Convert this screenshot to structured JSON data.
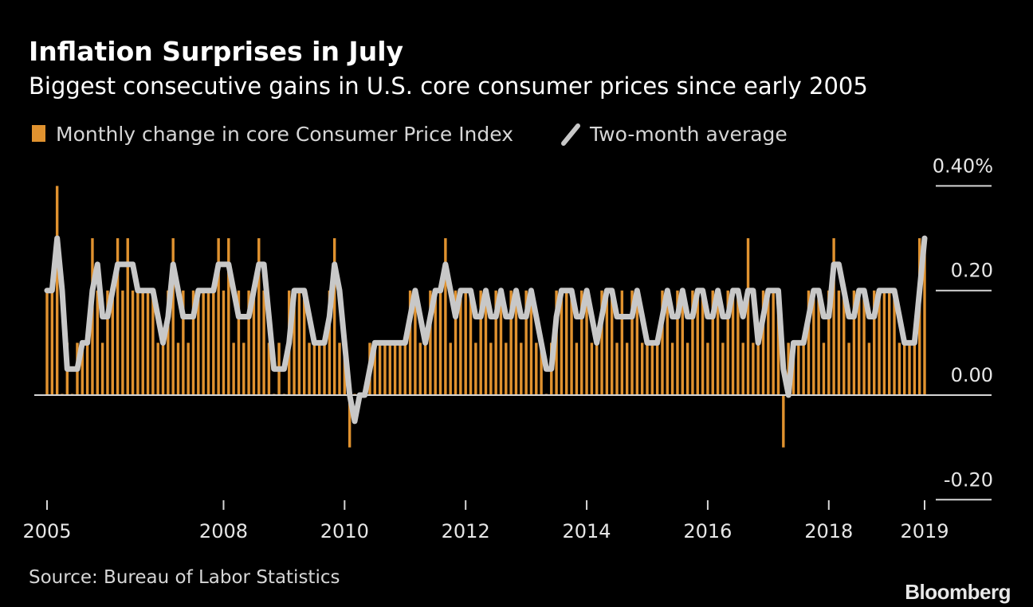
{
  "chart_data": {
    "type": "bar",
    "title": "Inflation Surprises in July",
    "subtitle": "Biggest consecutive gains in U.S. core consumer prices since early 2005",
    "xlabel": "",
    "ylabel": "",
    "x_start": "2005-01",
    "x_end": "2019-07",
    "x_tick_labels": [
      "2005",
      "2008",
      "2010",
      "2012",
      "2014",
      "2016",
      "2018",
      "2019"
    ],
    "y_tick_labels": [
      "0.40%",
      "0.20",
      "0.00",
      "-0.20"
    ],
    "y_ticks": [
      0.4,
      0.2,
      0.0,
      -0.2
    ],
    "ylim": [
      -0.2,
      0.4
    ],
    "grid": true,
    "legend_position": "top-left",
    "colors": {
      "bars": "#e0922f",
      "line": "#c8c8c8",
      "background": "#000000",
      "axis": "#d0d0d0"
    },
    "series": [
      {
        "name": "Monthly change in core Consumer Price Index",
        "type": "bar",
        "values": [
          0.2,
          0.2,
          0.4,
          0,
          0.1,
          0,
          0.1,
          0.1,
          0.1,
          0.3,
          0.2,
          0.1,
          0.2,
          0.2,
          0.3,
          0.2,
          0.3,
          0.2,
          0.2,
          0.2,
          0.2,
          0.2,
          0.1,
          0.1,
          0.2,
          0.3,
          0.1,
          0.2,
          0.1,
          0.2,
          0.2,
          0.2,
          0.2,
          0.2,
          0.3,
          0.2,
          0.3,
          0.1,
          0.2,
          0.1,
          0.2,
          0.2,
          0.3,
          0.2,
          0.1,
          0,
          0.1,
          0,
          0.2,
          0.2,
          0.2,
          0.2,
          0.1,
          0.1,
          0.1,
          0.1,
          0.2,
          0.3,
          0.1,
          0.1,
          -0.1,
          0,
          0,
          0,
          0.1,
          0.1,
          0.1,
          0.1,
          0.1,
          0.1,
          0.1,
          0.1,
          0.2,
          0.2,
          0.1,
          0.1,
          0.2,
          0.2,
          0.2,
          0.3,
          0.1,
          0.2,
          0.2,
          0.2,
          0.2,
          0.1,
          0.2,
          0.2,
          0.1,
          0.2,
          0.2,
          0.1,
          0.2,
          0.2,
          0.1,
          0.2,
          0.2,
          0.1,
          0.1,
          0,
          0.1,
          0.2,
          0.2,
          0.2,
          0.2,
          0.1,
          0.2,
          0.2,
          0.1,
          0.1,
          0.2,
          0.2,
          0.2,
          0.1,
          0.2,
          0.1,
          0.2,
          0.2,
          0.1,
          0.1,
          0.1,
          0.1,
          0.2,
          0.2,
          0.1,
          0.2,
          0.2,
          0.1,
          0.2,
          0.2,
          0.2,
          0.1,
          0.2,
          0.2,
          0.1,
          0.2,
          0.2,
          0.2,
          0.1,
          0.3,
          0.1,
          0.1,
          0.2,
          0.2,
          0.2,
          0.2,
          -0.1,
          0.1,
          0.1,
          0.1,
          0.1,
          0.2,
          0.2,
          0.2,
          0.1,
          0.2,
          0.3,
          0.2,
          0.2,
          0.1,
          0.2,
          0.2,
          0.2,
          0.1,
          0.2,
          0.2,
          0.2,
          0.2,
          0.2,
          0.1,
          0.1,
          0.1,
          0.1,
          0.3,
          0.3
        ]
      },
      {
        "name": "Two-month average",
        "type": "line",
        "values": [
          0.2,
          0.2,
          0.3,
          0.2,
          0.05,
          0.05,
          0.05,
          0.1,
          0.1,
          0.2,
          0.25,
          0.15,
          0.15,
          0.2,
          0.25,
          0.25,
          0.25,
          0.25,
          0.2,
          0.2,
          0.2,
          0.2,
          0.15,
          0.1,
          0.15,
          0.25,
          0.2,
          0.15,
          0.15,
          0.15,
          0.2,
          0.2,
          0.2,
          0.2,
          0.25,
          0.25,
          0.25,
          0.2,
          0.15,
          0.15,
          0.15,
          0.2,
          0.25,
          0.25,
          0.15,
          0.05,
          0.05,
          0.05,
          0.1,
          0.2,
          0.2,
          0.2,
          0.15,
          0.1,
          0.1,
          0.1,
          0.15,
          0.25,
          0.2,
          0.1,
          0,
          -0.05,
          0,
          0,
          0.05,
          0.1,
          0.1,
          0.1,
          0.1,
          0.1,
          0.1,
          0.1,
          0.15,
          0.2,
          0.15,
          0.1,
          0.15,
          0.2,
          0.2,
          0.25,
          0.2,
          0.15,
          0.2,
          0.2,
          0.2,
          0.15,
          0.15,
          0.2,
          0.15,
          0.15,
          0.2,
          0.15,
          0.15,
          0.2,
          0.15,
          0.15,
          0.2,
          0.15,
          0.1,
          0.05,
          0.05,
          0.15,
          0.2,
          0.2,
          0.2,
          0.15,
          0.15,
          0.2,
          0.15,
          0.1,
          0.15,
          0.2,
          0.2,
          0.15,
          0.15,
          0.15,
          0.15,
          0.2,
          0.15,
          0.1,
          0.1,
          0.1,
          0.15,
          0.2,
          0.15,
          0.15,
          0.2,
          0.15,
          0.15,
          0.2,
          0.2,
          0.15,
          0.15,
          0.2,
          0.15,
          0.15,
          0.2,
          0.2,
          0.15,
          0.2,
          0.2,
          0.1,
          0.15,
          0.2,
          0.2,
          0.2,
          0.05,
          0,
          0.1,
          0.1,
          0.1,
          0.15,
          0.2,
          0.2,
          0.15,
          0.15,
          0.25,
          0.25,
          0.2,
          0.15,
          0.15,
          0.2,
          0.2,
          0.15,
          0.15,
          0.2,
          0.2,
          0.2,
          0.2,
          0.15,
          0.1,
          0.1,
          0.1,
          0.2,
          0.3
        ]
      }
    ],
    "source": "Source: Bureau of Labor Statistics",
    "logo": "Bloomberg"
  }
}
